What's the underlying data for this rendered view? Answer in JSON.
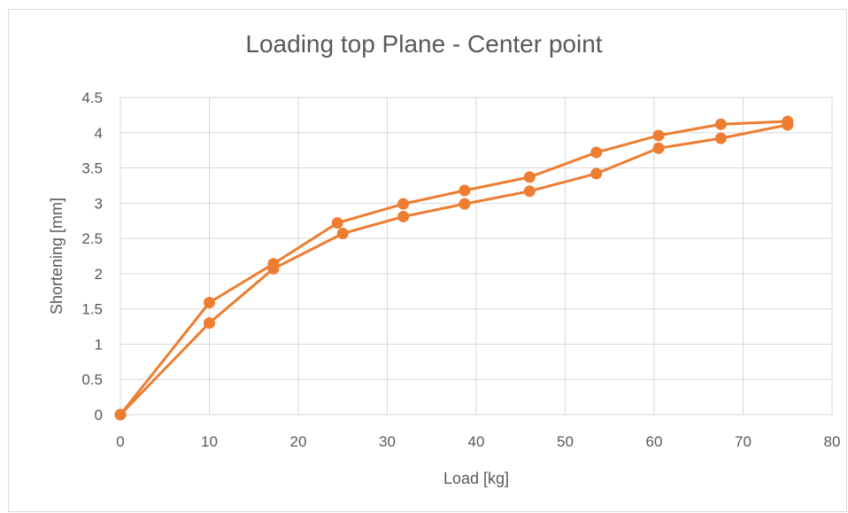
{
  "chart_data": {
    "type": "scatter",
    "title": "Loading top Plane - Center point",
    "xlabel": "Load [kg]",
    "ylabel": "Shortening [mm]",
    "xlim": [
      0,
      80
    ],
    "ylim": [
      0,
      4.5
    ],
    "xticks": [
      0,
      10,
      20,
      30,
      40,
      50,
      60,
      70,
      80
    ],
    "yticks": [
      0,
      0.5,
      1,
      1.5,
      2,
      2.5,
      3,
      3.5,
      4,
      4.5
    ],
    "grid": true,
    "legend": "none",
    "color": "#ED7D31",
    "series": [
      {
        "x": [
          0,
          10,
          17.2,
          25,
          31.8,
          38.7,
          46,
          53.5,
          60.5,
          67.5,
          75
        ],
        "y": [
          0,
          1.3,
          2.07,
          2.57,
          2.81,
          2.99,
          3.17,
          3.42,
          3.78,
          3.92,
          4.11
        ]
      },
      {
        "x": [
          0,
          10,
          17.2,
          24.4,
          31.8,
          38.7,
          46,
          53.5,
          60.5,
          67.5,
          75
        ],
        "y": [
          0,
          1.59,
          2.14,
          2.72,
          2.99,
          3.18,
          3.37,
          3.72,
          3.96,
          4.12,
          4.16
        ]
      }
    ]
  }
}
